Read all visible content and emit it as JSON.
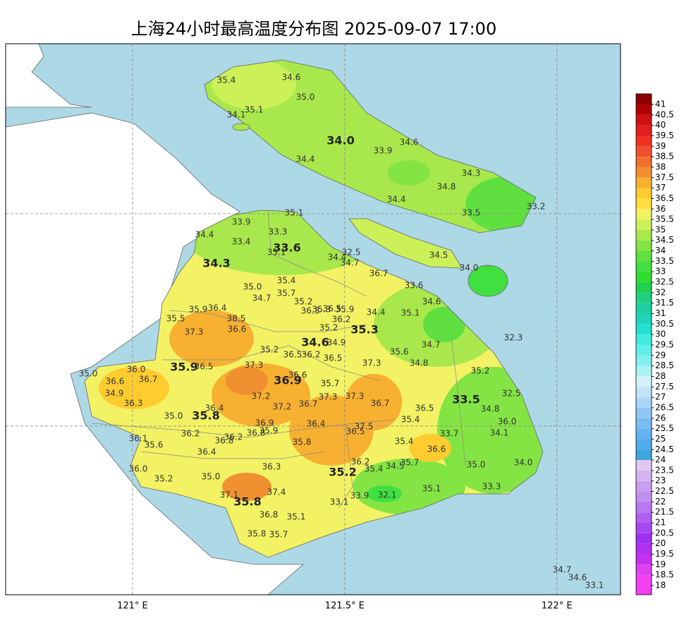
{
  "title": "上海24小时最高温度分布图 2025-09-07 17:00",
  "lon_axis": {
    "xlim": [
      120.701,
      122.15
    ],
    "xticks": [
      {
        "value": 121,
        "label": "121° E"
      },
      {
        "value": 121.5,
        "label": "121.5° E"
      },
      {
        "value": 122,
        "label": "122° E"
      }
    ]
  },
  "lat_axis": {
    "ylim": [
      30.603,
      31.9
    ],
    "yticks": [
      31,
      31.5
    ]
  },
  "district_labels": [
    "34.0",
    "33.6",
    "34.3",
    "35.3",
    "34.6",
    "35.9",
    "36.9",
    "33.5",
    "35.8",
    "35.2",
    "35.8"
  ],
  "station_labels": [
    "35.4",
    "34.6",
    "35.0",
    "35.1",
    "34.1",
    "33.9",
    "34.6",
    "34.4",
    "34.3",
    "34.8",
    "34.4",
    "33.5",
    "33.2",
    "33.9",
    "35.1",
    "33.3",
    "34.4",
    "33.4",
    "35.1",
    "32.5",
    "34.4",
    "34.7",
    "34.5",
    "34.0",
    "36.7",
    "35.0",
    "35.4",
    "35.7",
    "34.7",
    "33.6",
    "35.2",
    "34.6",
    "36.3",
    "35.3",
    "36.5",
    "35.9",
    "36.2",
    "35.2",
    "34.9",
    "34.4",
    "35.1",
    "35.9",
    "36.4",
    "35.5",
    "38.5",
    "36.6",
    "37.3",
    "32.3",
    "34.7",
    "35.2",
    "36.5",
    "36.2",
    "36.5",
    "35.6",
    "34.8",
    "37.3",
    "35.2",
    "37.3",
    "36.5",
    "35.0",
    "36.0",
    "36.6",
    "36.7",
    "34.9",
    "36.3",
    "36.6",
    "35.7",
    "32.5",
    "37.2",
    "37.3",
    "37.3",
    "36.7",
    "36.7",
    "37.2",
    "36.4",
    "36.5",
    "34.8",
    "35.0",
    "35.4",
    "36.0",
    "36.9",
    "36.4",
    "37.5",
    "35.9",
    "36.5",
    "36.8",
    "36.2",
    "33.7",
    "34.1",
    "36.1",
    "35.6",
    "36.2",
    "36.8",
    "35.8",
    "35.4",
    "36.6",
    "36.4",
    "36.2",
    "35.7",
    "34.5",
    "35.4",
    "35.0",
    "34.0",
    "36.0",
    "36.3",
    "35.2",
    "35.0",
    "37.4",
    "33.3",
    "35.1",
    "37.1",
    "32.1",
    "33.9",
    "33.1",
    "36.8",
    "35.1",
    "35.8",
    "35.7",
    "34.7",
    "34.6",
    "33.1"
  ],
  "colorbar": {
    "ticks": [
      18,
      18.5,
      19,
      19.5,
      20,
      20.5,
      21,
      21.5,
      22,
      22.5,
      23,
      23.5,
      24,
      24.5,
      25,
      25.5,
      26,
      26.5,
      27,
      27.5,
      28,
      28.5,
      29,
      29.5,
      30,
      30.5,
      31,
      31.5,
      32,
      32.5,
      33,
      33.5,
      34,
      34.5,
      35,
      35.5,
      36,
      36.5,
      37,
      37.5,
      38,
      38.5,
      39,
      39.5,
      40,
      40.5,
      41
    ],
    "colors": [
      "#f040f0",
      "#e040f0",
      "#c830f0",
      "#b030f0",
      "#a030f0",
      "#a848f0",
      "#b060f0",
      "#b878f0",
      "#c090f0",
      "#c8a0f0",
      "#d4b4f0",
      "#e0c8f0",
      "#40a4e0",
      "#50acea",
      "#64b4f0",
      "#78bcf0",
      "#90c8f2",
      "#aad6f8",
      "#c4e2f8",
      "#d4f2f8",
      "#a8f2f2",
      "#84f0f0",
      "#60eee8",
      "#40ece0",
      "#24e0d0",
      "#20d4bc",
      "#20d0a0",
      "#20d080",
      "#20d050",
      "#30dc30",
      "#40e040",
      "#60e040",
      "#84e444",
      "#a8e84c",
      "#ccf058",
      "#f2f264",
      "#ffe040",
      "#ffcc30",
      "#f8b030",
      "#f09030",
      "#f07030",
      "#f05030",
      "#f03020",
      "#e02020",
      "#d01010",
      "#b00000"
    ],
    "over_color": "#8b0000"
  }
}
